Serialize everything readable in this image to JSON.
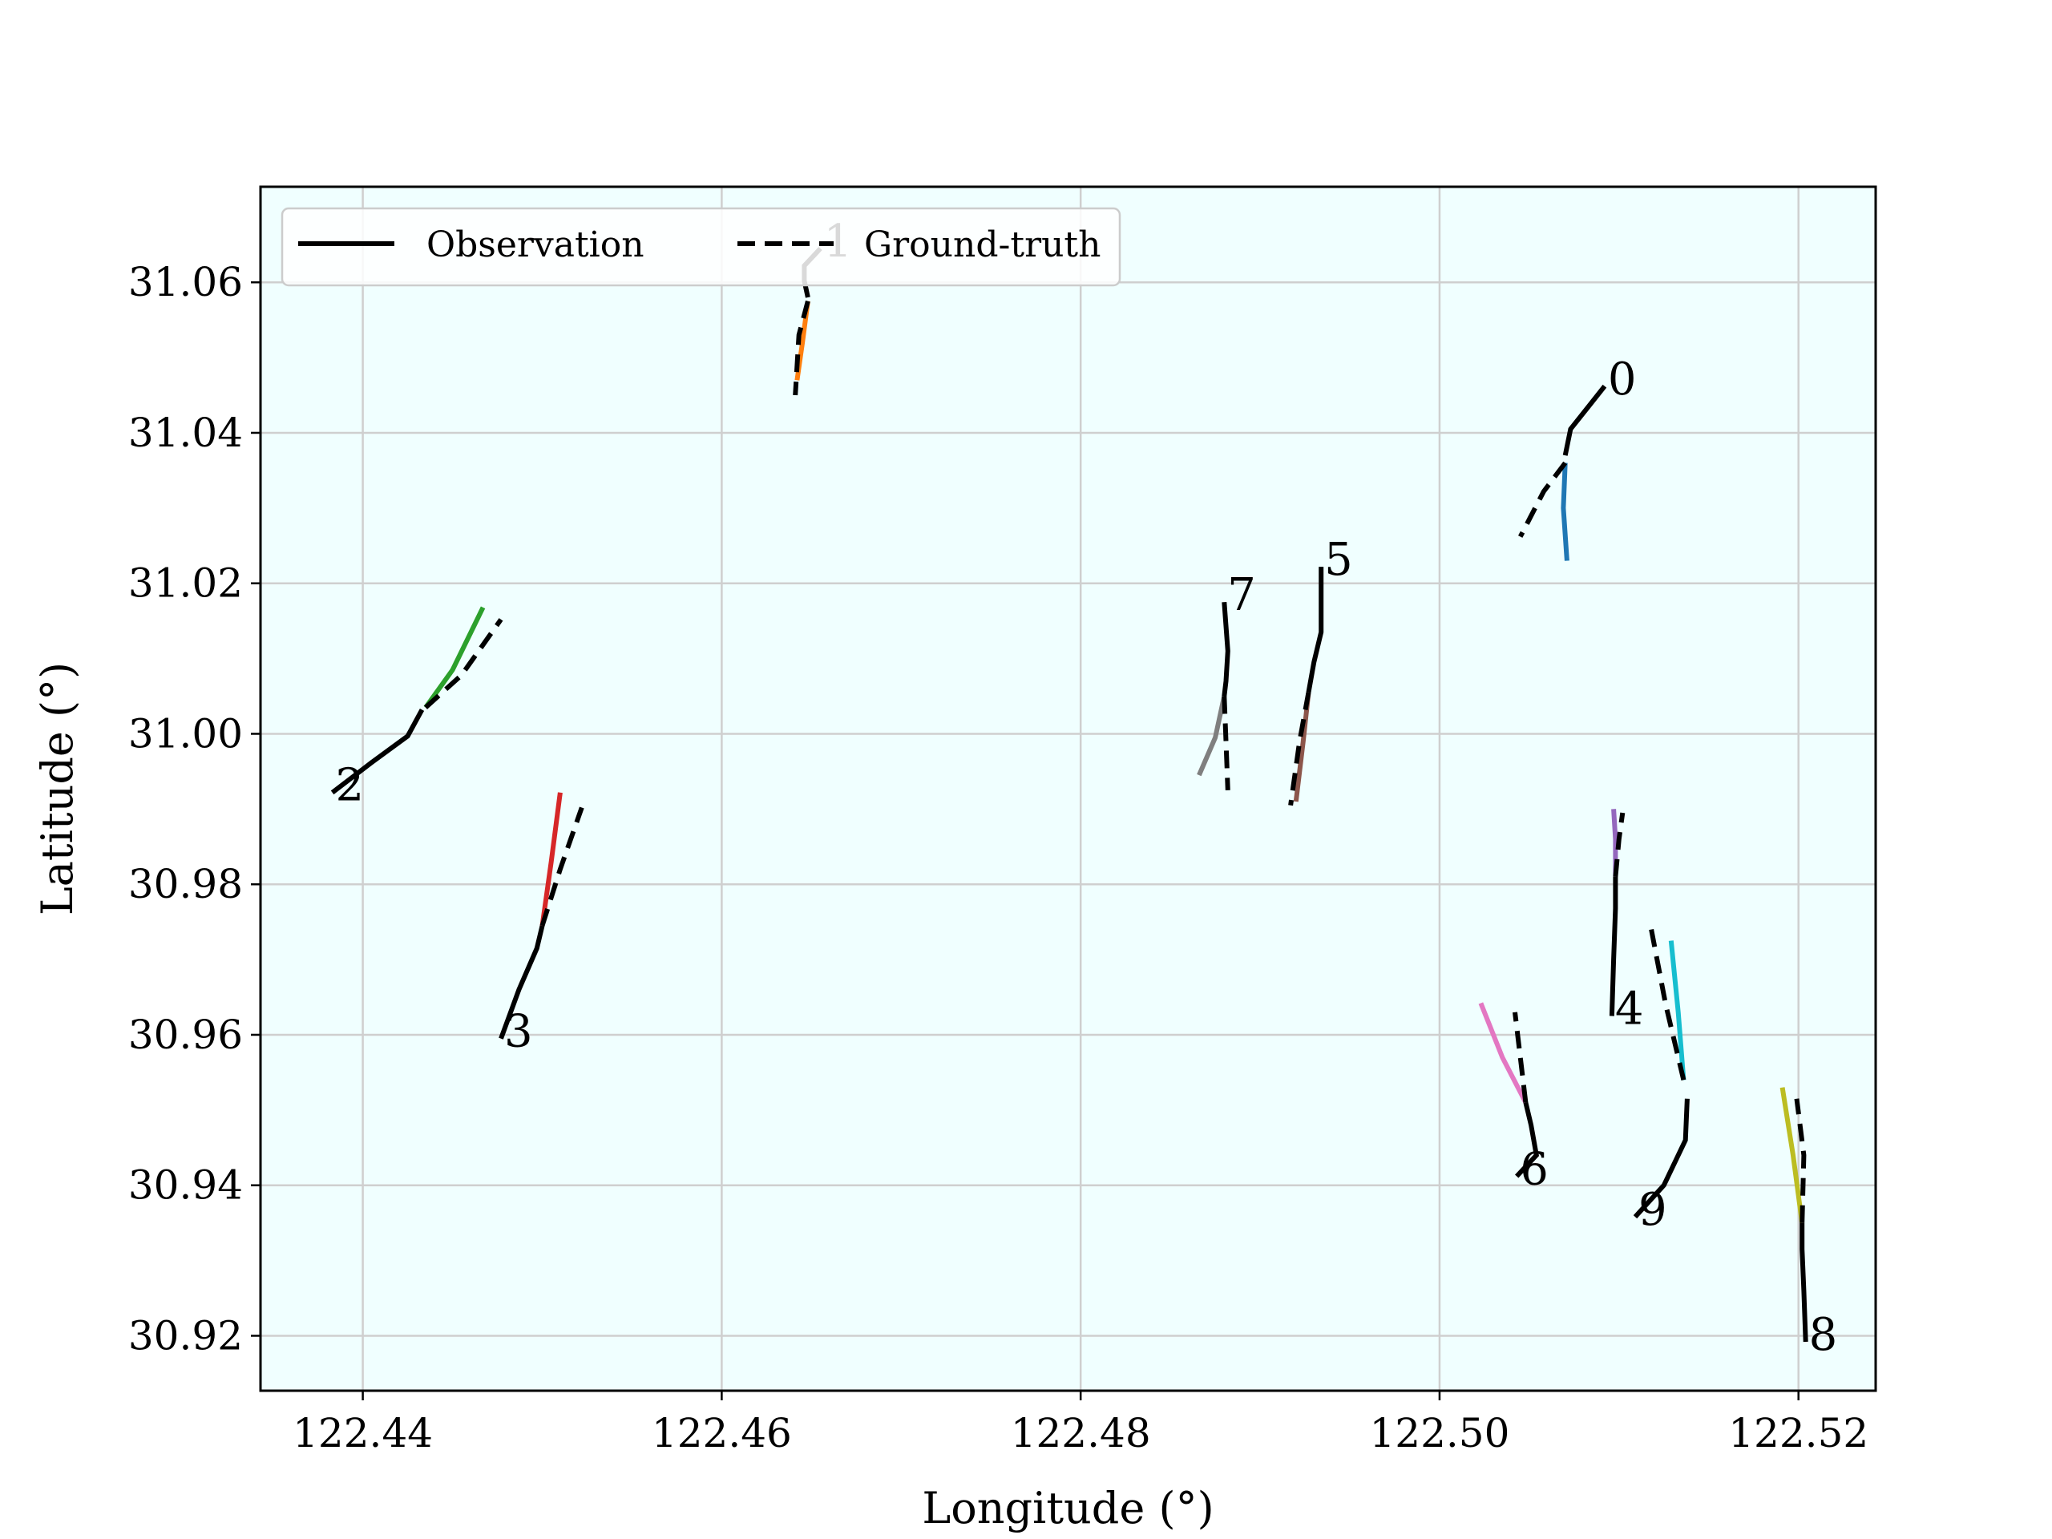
{
  "chart_data": {
    "type": "line",
    "xlabel": "Longitude (°)",
    "ylabel": "Latitude (°)",
    "xlim": [
      122.4343,
      122.5243
    ],
    "ylim": [
      30.9127,
      31.0727
    ],
    "xticks": [
      122.44,
      122.46,
      122.48,
      122.5,
      122.52
    ],
    "xtick_labels": [
      "122.44",
      "122.46",
      "122.48",
      "122.50",
      "122.52"
    ],
    "yticks": [
      30.92,
      30.94,
      30.96,
      30.98,
      31.0,
      31.02,
      31.04,
      31.06
    ],
    "ytick_labels": [
      "30.92",
      "30.94",
      "30.96",
      "30.98",
      "31.00",
      "31.02",
      "31.04",
      "31.06"
    ],
    "grid": true,
    "background": "#f0ffff",
    "legend": {
      "placement": "upper-left",
      "entries": [
        {
          "label": "Observation",
          "style": "solid",
          "color": "#000000"
        },
        {
          "label": "Ground-truth",
          "style": "dashed",
          "color": "#000000"
        }
      ]
    },
    "trajectories": [
      {
        "id": "0",
        "color": "#1f77b4",
        "observation": [
          [
            122.5092,
            31.0462
          ],
          [
            122.5083,
            31.0435
          ],
          [
            122.5073,
            31.0405
          ],
          [
            122.507,
            31.037
          ]
        ],
        "prediction": [
          [
            122.507,
            31.036
          ],
          [
            122.5069,
            31.03
          ],
          [
            122.5071,
            31.023
          ]
        ],
        "ground_truth": [
          [
            122.507,
            31.036
          ],
          [
            122.5058,
            31.0322
          ],
          [
            122.5045,
            31.0262
          ]
        ]
      },
      {
        "id": "1",
        "color": "#ff7f0e",
        "observation": [
          [
            122.4655,
            31.0645
          ],
          [
            122.4646,
            31.0622
          ],
          [
            122.4646,
            31.0602
          ],
          [
            122.4648,
            31.058
          ]
        ],
        "prediction": [
          [
            122.4648,
            31.0575
          ],
          [
            122.4645,
            31.052
          ],
          [
            122.4642,
            31.047
          ]
        ],
        "ground_truth": [
          [
            122.4648,
            31.0575
          ],
          [
            122.4643,
            31.053
          ],
          [
            122.4641,
            31.045
          ]
        ]
      },
      {
        "id": "2",
        "color": "#2ca02c",
        "observation": [
          [
            122.4383,
            30.9922
          ],
          [
            122.4405,
            30.9962
          ],
          [
            122.4425,
            30.9997
          ],
          [
            122.4433,
            31.0032
          ]
        ],
        "prediction": [
          [
            122.4435,
            31.0035
          ],
          [
            122.445,
            31.0085
          ],
          [
            122.4467,
            31.0168
          ]
        ],
        "ground_truth": [
          [
            122.4435,
            31.0035
          ],
          [
            122.4455,
            31.0078
          ],
          [
            122.4477,
            31.0152
          ]
        ]
      },
      {
        "id": "3",
        "color": "#d62728",
        "observation": [
          [
            122.4477,
            30.9595
          ],
          [
            122.4487,
            30.966
          ],
          [
            122.4497,
            30.9715
          ],
          [
            122.45,
            30.9745
          ]
        ],
        "prediction": [
          [
            122.45,
            30.9745
          ],
          [
            122.4505,
            30.983
          ],
          [
            122.451,
            30.9922
          ]
        ],
        "ground_truth": [
          [
            122.45,
            30.9745
          ],
          [
            122.451,
            30.982
          ],
          [
            122.4522,
            30.9902
          ]
        ]
      },
      {
        "id": "4",
        "color": "#9467bd",
        "observation": [
          [
            122.5096,
            30.9625
          ],
          [
            122.5097,
            30.97
          ],
          [
            122.5098,
            30.9768
          ],
          [
            122.5098,
            30.981
          ]
        ],
        "prediction": [
          [
            122.5098,
            30.981
          ],
          [
            122.5098,
            30.986
          ],
          [
            122.5097,
            30.99
          ]
        ],
        "ground_truth": [
          [
            122.5098,
            30.981
          ],
          [
            122.51,
            30.986
          ],
          [
            122.5102,
            30.9895
          ]
        ]
      },
      {
        "id": "5",
        "color": "#8c564b",
        "observation": [
          [
            122.4934,
            31.0222
          ],
          [
            122.4934,
            31.0135
          ],
          [
            122.493,
            31.0095
          ],
          [
            122.4927,
            31.0055
          ]
        ],
        "prediction": [
          [
            122.4927,
            31.0055
          ],
          [
            122.4924,
            30.999
          ],
          [
            122.492,
            30.991
          ]
        ],
        "ground_truth": [
          [
            122.4927,
            31.0055
          ],
          [
            122.4922,
            30.999
          ],
          [
            122.4917,
            30.9905
          ]
        ]
      },
      {
        "id": "6",
        "color": "#e377c2",
        "observation": [
          [
            122.5043,
            30.9412
          ],
          [
            122.5054,
            30.944
          ],
          [
            122.5051,
            30.948
          ],
          [
            122.5048,
            30.951
          ]
        ],
        "prediction": [
          [
            122.5048,
            30.951
          ],
          [
            122.5035,
            30.957
          ],
          [
            122.5023,
            30.9642
          ]
        ],
        "ground_truth": [
          [
            122.5048,
            30.951
          ],
          [
            122.5045,
            30.957
          ],
          [
            122.5042,
            30.963
          ]
        ]
      },
      {
        "id": "7",
        "color": "#7f7f7f",
        "observation": [
          [
            122.488,
            31.0175
          ],
          [
            122.4882,
            31.011
          ],
          [
            122.4881,
            31.007
          ],
          [
            122.488,
            31.005
          ]
        ],
        "prediction": [
          [
            122.488,
            31.005
          ],
          [
            122.4875,
            30.9995
          ],
          [
            122.4866,
            30.9945
          ]
        ],
        "ground_truth": [
          [
            122.488,
            31.005
          ],
          [
            122.4881,
            30.999
          ],
          [
            122.4882,
            30.9925
          ]
        ]
      },
      {
        "id": "8",
        "color": "#bcbd22",
        "observation": [
          [
            122.5204,
            30.9192
          ],
          [
            122.5203,
            30.926
          ],
          [
            122.5202,
            30.9315
          ],
          [
            122.5202,
            30.935
          ]
        ],
        "prediction": [
          [
            122.5202,
            30.935
          ],
          [
            122.5197,
            30.944
          ],
          [
            122.5191,
            30.953
          ]
        ],
        "ground_truth": [
          [
            122.5202,
            30.935
          ],
          [
            122.5203,
            30.944
          ],
          [
            122.5199,
            30.9515
          ]
        ]
      },
      {
        "id": "9",
        "color": "#17becf",
        "observation": [
          [
            122.5109,
            30.9358
          ],
          [
            122.5125,
            30.94
          ],
          [
            122.5137,
            30.946
          ],
          [
            122.5138,
            30.9515
          ]
        ],
        "prediction": [
          [
            122.5136,
            30.954
          ],
          [
            122.5133,
            30.963
          ],
          [
            122.5129,
            30.9725
          ]
        ],
        "ground_truth": [
          [
            122.5136,
            30.954
          ],
          [
            122.5126,
            30.964
          ],
          [
            122.5118,
            30.974
          ]
        ]
      }
    ]
  }
}
